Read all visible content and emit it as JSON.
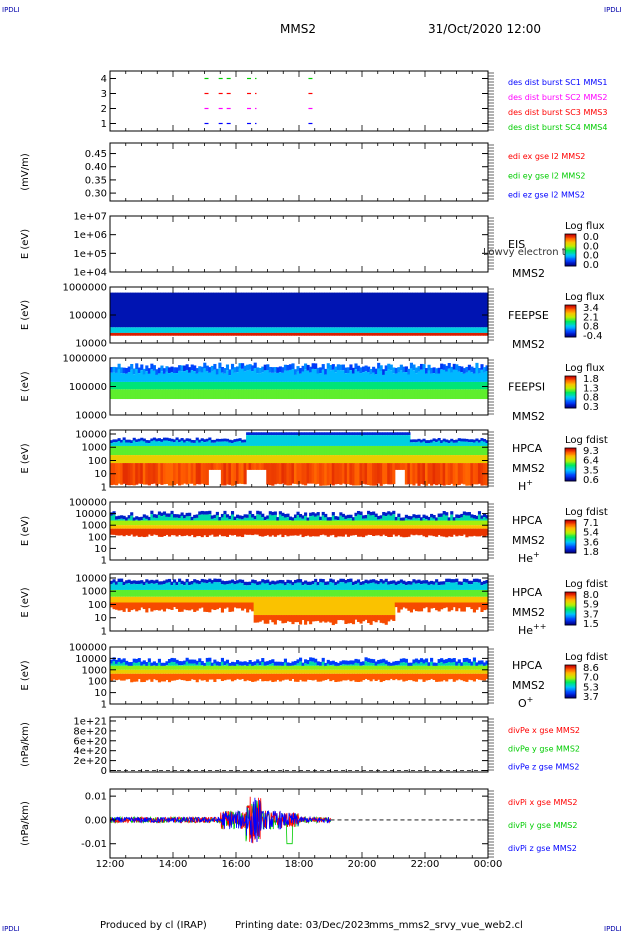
{
  "header": {
    "corner_tl": "IPDLI",
    "corner_tr": "IPDLI",
    "corner_bl": "IPDLI",
    "corner_br": "IPDLI",
    "spacecraft": "MMS2",
    "datetime": "31/Oct/2020 12:00"
  },
  "footer": {
    "producer": "Produced by cl (IRAP)",
    "print_date": "Printing date: 03/Dec/2023",
    "filename": "mms_mms2_srvy_vue_web2.cl"
  },
  "chart_data": {
    "type": "multi-panel time series",
    "x_ticks": [
      "12:00",
      "14:00",
      "16:00",
      "18:00",
      "20:00",
      "22:00",
      "00:00"
    ],
    "x_range_hours": [
      12,
      24
    ],
    "panels": [
      {
        "id": "burst",
        "type": "scatter",
        "ylabel": "",
        "y_ticks": [
          "1",
          "2",
          "3",
          "4"
        ],
        "ylim": [
          0.5,
          4.5
        ],
        "legend": [
          {
            "text": "des dist burst SC1 MMS1",
            "color": "#0000ff"
          },
          {
            "text": "des dist burst SC2 MMS2",
            "color": "#ff00ff"
          },
          {
            "text": "des dist burst SC3 MMS3",
            "color": "#ff0000"
          },
          {
            "text": "des dist burst SC4 MMS4",
            "color": "#00cc00"
          }
        ],
        "series": [
          {
            "level": 4,
            "color": "#00cc00",
            "intervals": [
              [
                15.0,
                15.2
              ],
              [
                15.45,
                15.9
              ],
              [
                16.35,
                16.65
              ],
              [
                18.3,
                18.55
              ]
            ]
          },
          {
            "level": 3,
            "color": "#ff0000",
            "intervals": [
              [
                15.0,
                15.2
              ],
              [
                15.45,
                15.9
              ],
              [
                16.35,
                16.65
              ],
              [
                18.3,
                18.55
              ]
            ]
          },
          {
            "level": 2,
            "color": "#ff00ff",
            "intervals": [
              [
                15.0,
                15.2
              ],
              [
                15.45,
                15.9
              ],
              [
                16.35,
                16.65
              ],
              [
                18.3,
                18.55
              ]
            ]
          },
          {
            "level": 1,
            "color": "#0000ff",
            "intervals": [
              [
                15.0,
                15.2
              ],
              [
                15.45,
                15.9
              ],
              [
                16.35,
                16.65
              ],
              [
                18.3,
                18.55
              ]
            ]
          }
        ]
      },
      {
        "id": "edi",
        "type": "line",
        "ylabel": "(mV/m)",
        "y_ticks": [
          "0.30",
          "0.35",
          "0.40",
          "0.45"
        ],
        "ylim": [
          0.27,
          0.49
        ],
        "legend": [
          {
            "text": "edi ex gse l2 MMS2",
            "color": "#ff0000"
          },
          {
            "text": "edi ey gse l2 MMS2",
            "color": "#00cc00"
          },
          {
            "text": "edi ez gse l2 MMS2",
            "color": "#0000ff"
          }
        ]
      },
      {
        "id": "eis",
        "type": "heatmap",
        "ylabel": "E (eV)",
        "y_ticks": [
          "1e+04",
          "1e+05",
          "1e+06",
          "1e+07"
        ],
        "ylim": [
          10000.0,
          10000000.0
        ],
        "log_y": true,
        "label_lines": [
          "EIS",
          "MMS2"
        ],
        "overlay_text": "Lowvy electron to",
        "cbar": {
          "title": "Log flux",
          "ticks": [
            "0.0",
            "0.0",
            "0.0",
            "0.0"
          ]
        }
      },
      {
        "id": "feepse",
        "type": "heatmap",
        "ylabel": "E (eV)",
        "y_ticks": [
          "10000",
          "100000",
          "1000000"
        ],
        "ylim": [
          10000.0,
          1000000.0
        ],
        "log_y": true,
        "label_lines": [
          "FEEPSE",
          "MMS2"
        ],
        "cbar": {
          "title": "Log flux",
          "ticks": [
            "3.4",
            "2.1",
            "0.8",
            "-0.4"
          ]
        }
      },
      {
        "id": "feepsi",
        "type": "heatmap",
        "ylabel": "E (eV)",
        "y_ticks": [
          "10000",
          "100000",
          "1000000"
        ],
        "ylim": [
          10000.0,
          1000000.0
        ],
        "log_y": true,
        "label_lines": [
          "FEEPSI",
          "MMS2"
        ],
        "cbar": {
          "title": "Log flux",
          "ticks": [
            "1.8",
            "1.3",
            "0.8",
            "0.3"
          ]
        }
      },
      {
        "id": "hpca_h",
        "type": "heatmap",
        "ylabel": "E (eV)",
        "y_ticks": [
          "1",
          "10",
          "100",
          "1000",
          "10000"
        ],
        "ylim": [
          1,
          20000
        ],
        "log_y": true,
        "label_lines": [
          "HPCA",
          "MMS2"
        ],
        "species": "H",
        "species_sup": "+",
        "cbar": {
          "title": "Log fdist",
          "ticks": [
            "9.3",
            "6.4",
            "3.5",
            "0.6"
          ]
        }
      },
      {
        "id": "hpca_he",
        "type": "heatmap",
        "ylabel": "E (eV)",
        "y_ticks": [
          "1",
          "10",
          "100",
          "1000",
          "10000",
          "100000"
        ],
        "ylim": [
          1,
          100000
        ],
        "log_y": true,
        "label_lines": [
          "HPCA",
          "MMS2"
        ],
        "species": "He",
        "species_sup": "+",
        "cbar": {
          "title": "Log fdist",
          "ticks": [
            "7.1",
            "5.4",
            "3.6",
            "1.8"
          ]
        }
      },
      {
        "id": "hpca_he2",
        "type": "heatmap",
        "ylabel": "E (eV)",
        "y_ticks": [
          "1",
          "10",
          "100",
          "1000",
          "10000"
        ],
        "ylim": [
          1,
          20000
        ],
        "log_y": true,
        "label_lines": [
          "HPCA",
          "MMS2"
        ],
        "species": "He",
        "species_sup": "++",
        "cbar": {
          "title": "Log fdist",
          "ticks": [
            "8.0",
            "5.9",
            "3.7",
            "1.5"
          ]
        }
      },
      {
        "id": "hpca_o",
        "type": "heatmap",
        "ylabel": "E (eV)",
        "y_ticks": [
          "1",
          "10",
          "100",
          "1000",
          "10000",
          "100000"
        ],
        "ylim": [
          1,
          100000
        ],
        "log_y": true,
        "label_lines": [
          "HPCA",
          "MMS2"
        ],
        "species": "O",
        "species_sup": "+",
        "cbar": {
          "title": "Log fdist",
          "ticks": [
            "8.6",
            "7.0",
            "5.3",
            "3.7"
          ]
        }
      },
      {
        "id": "divpe",
        "type": "line",
        "ylabel": "(nPa/km)",
        "y_ticks": [
          "0",
          "2e+20",
          "4e+20",
          "6e+20",
          "8e+20",
          "1e+21"
        ],
        "ylim": [
          -3e+19,
          1.08e+21
        ],
        "zero_line": true,
        "legend": [
          {
            "text": "divPe x gse MMS2",
            "color": "#ff0000"
          },
          {
            "text": "divPe y gse MMS2",
            "color": "#00cc00"
          },
          {
            "text": "divPe z gse MMS2",
            "color": "#0000ff"
          }
        ]
      },
      {
        "id": "divpi",
        "type": "line",
        "ylabel": "(nPa/km)",
        "y_ticks": [
          "-0.01",
          "0.00",
          "0.01"
        ],
        "ylim": [
          -0.016,
          0.013
        ],
        "zero_line": true,
        "data_extent_hours": [
          12,
          19
        ],
        "legend": [
          {
            "text": "divPi x gse MMS2",
            "color": "#ff0000"
          },
          {
            "text": "divPi y gse MMS2",
            "color": "#00cc00"
          },
          {
            "text": "divPi z gse MMS2",
            "color": "#0000ff"
          }
        ]
      }
    ]
  }
}
